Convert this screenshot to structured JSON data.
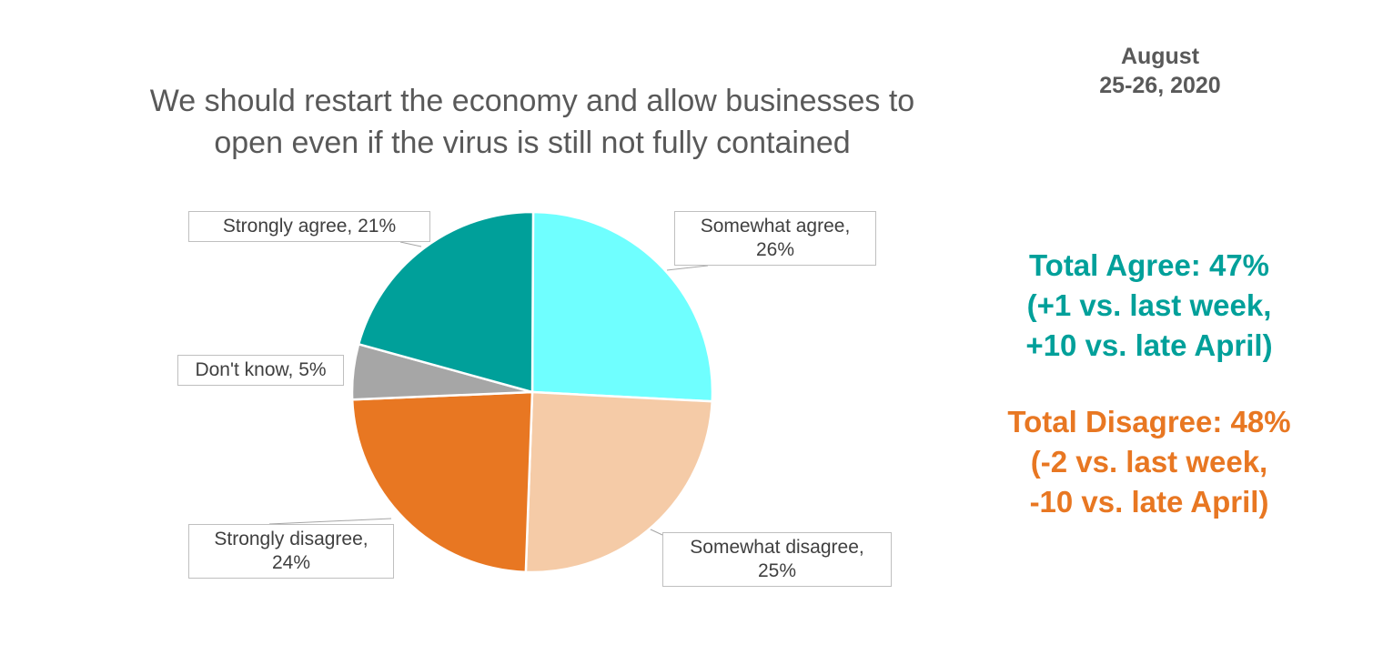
{
  "header": {
    "title_line1": "We should restart the economy and allow businesses to",
    "title_line2": "open even if the virus is still not fully contained",
    "date_line1": "August",
    "date_line2": "25-26, 2020"
  },
  "summary": {
    "agree": {
      "line1": "Total Agree: 47%",
      "line2": "(+1 vs. last week,",
      "line3": "+10 vs. late April)",
      "color": "#00a09a"
    },
    "disagree": {
      "line1": "Total Disagree: 48%",
      "line2": "(-2 vs. last week,",
      "line3": "-10 vs. late April)",
      "color": "#e87722"
    }
  },
  "chart_data": {
    "type": "pie",
    "title": "We should restart the economy and allow businesses to open even if the virus is still not fully contained",
    "slices": [
      {
        "label": "Somewhat agree",
        "value": 26,
        "color": "#6fffff"
      },
      {
        "label": "Somewhat disagree",
        "value": 25,
        "color": "#f5cba7"
      },
      {
        "label": "Strongly disagree",
        "value": 24,
        "color": "#e87722"
      },
      {
        "label": "Don't know",
        "value": 5,
        "color": "#a6a6a6"
      },
      {
        "label": "Strongly agree",
        "value": 21,
        "color": "#00a09a"
      }
    ],
    "data_labels": {
      "somewhat_agree_l1": "Somewhat agree,",
      "somewhat_agree_l2": "26%",
      "somewhat_disagree_l1": "Somewhat disagree,",
      "somewhat_disagree_l2": "25%",
      "strongly_disagree_l1": "Strongly disagree,",
      "strongly_disagree_l2": "24%",
      "dont_know": "Don't know, 5%",
      "strongly_agree": "Strongly agree, 21%"
    }
  }
}
